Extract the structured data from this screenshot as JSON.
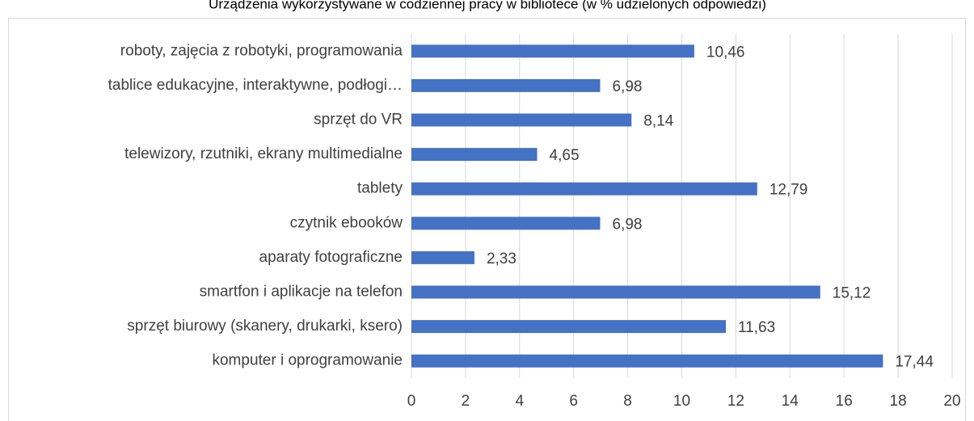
{
  "chart_data": {
    "type": "bar",
    "orientation": "horizontal",
    "title": "Urządzenia wykorzystywane w codziennej pracy w bibliotece (w % udzielonych odpowiedzi)",
    "categories": [
      "roboty, zajęcia z robotyki, programowania",
      "tablice edukacyjne, interaktywne, podłogi…",
      "sprzęt do VR",
      "telewizory, rzutniki, ekrany multimedialne",
      "tablety",
      "czytnik ebooków",
      "aparaty fotograficzne",
      "smartfon i aplikacje na telefon",
      "sprzęt biurowy (skanery, drukarki, ksero)",
      "komputer i oprogramowanie"
    ],
    "values": [
      10.46,
      6.98,
      8.14,
      4.65,
      12.79,
      6.98,
      2.33,
      15.12,
      11.63,
      17.44
    ],
    "value_labels": [
      "10,46",
      "6,98",
      "8,14",
      "4,65",
      "12,79",
      "6,98",
      "2,33",
      "15,12",
      "11,63",
      "17,44"
    ],
    "color": "#4472c4",
    "xlim": [
      0,
      20
    ],
    "xticks": [
      0,
      2,
      4,
      6,
      8,
      10,
      12,
      14,
      16,
      18,
      20
    ],
    "grid": true
  }
}
